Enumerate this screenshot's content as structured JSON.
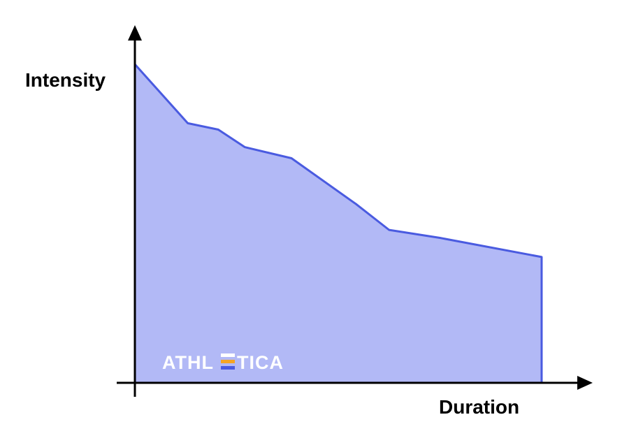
{
  "chart_data": {
    "type": "area",
    "title": "",
    "xlabel": "Duration",
    "ylabel": "Intensity",
    "x": [
      0,
      0.13,
      0.205,
      0.27,
      0.385,
      0.545,
      0.625,
      0.75,
      1.0
    ],
    "series": [
      {
        "values": [
          1.0,
          0.815,
          0.795,
          0.74,
          0.705,
          0.56,
          0.48,
          0.455,
          0.395
        ]
      }
    ],
    "xlim": [
      0,
      1.26
    ],
    "ylim": [
      0,
      1.13
    ],
    "grid": false,
    "legend": "none"
  },
  "colors": {
    "area_fill": "#b2b9f6",
    "line": "#4a5be0",
    "axis": "#000000",
    "logo_text": "#ffffff",
    "logo_accent": "#f5a524"
  },
  "logo": {
    "left": "ATHL",
    "right": "TICA"
  }
}
